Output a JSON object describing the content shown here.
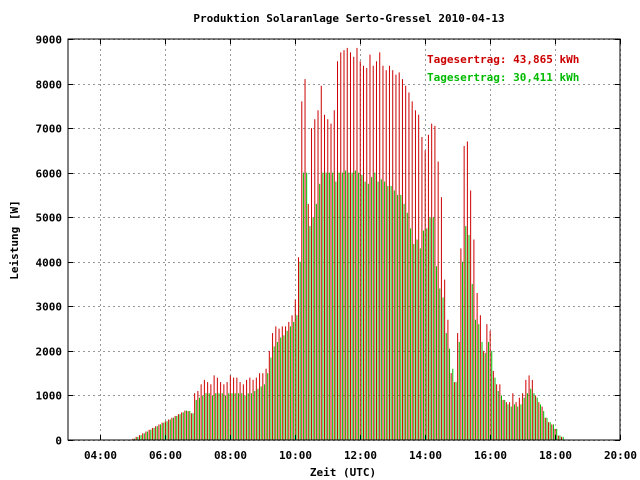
{
  "chart_data": {
    "type": "bar",
    "title": "Produktion Solaranlage Serto-Gressel 2010-04-13",
    "xlabel": "Zeit (UTC)",
    "ylabel": "Leistung [W]",
    "xlim": [
      3.0,
      20.0
    ],
    "ylim": [
      0,
      9000
    ],
    "grid": true,
    "x_ticks": [
      "04:00",
      "06:00",
      "08:00",
      "10:00",
      "12:00",
      "14:00",
      "16:00",
      "18:00",
      "20:00"
    ],
    "x_tick_values": [
      4,
      6,
      8,
      10,
      12,
      14,
      16,
      18,
      20
    ],
    "y_ticks": [
      "0",
      "1000",
      "2000",
      "3000",
      "4000",
      "5000",
      "6000",
      "7000",
      "8000",
      "9000"
    ],
    "y_tick_values": [
      0,
      1000,
      2000,
      3000,
      4000,
      5000,
      6000,
      7000,
      8000,
      9000
    ],
    "annotations": [
      {
        "text": "Tagesertrag: 43,865 kWh",
        "color": "#cc0000"
      },
      {
        "text": "Tagesertrag: 30,411 kWh",
        "color": "#00bb00"
      }
    ],
    "series": [
      {
        "color": "#cc0000",
        "x_start": 5.0,
        "x_step": 0.1,
        "values": [
          30,
          70,
          110,
          150,
          190,
          230,
          270,
          310,
          350,
          390,
          420,
          460,
          500,
          540,
          580,
          620,
          660,
          650,
          600,
          1050,
          1100,
          1250,
          1350,
          1300,
          1250,
          1450,
          1400,
          1300,
          1250,
          1300,
          1450,
          1400,
          1400,
          1300,
          1250,
          1350,
          1400,
          1350,
          1400,
          1500,
          1500,
          1600,
          2000,
          2400,
          2550,
          2500,
          2550,
          2550,
          2650,
          2800,
          3150,
          4100,
          7600,
          8100,
          5300,
          7000,
          7200,
          7400,
          7950,
          7300,
          7200,
          7100,
          7400,
          8500,
          8700,
          8750,
          8800,
          8700,
          8600,
          8800,
          8500,
          8400,
          8350,
          8650,
          8400,
          8500,
          8700,
          8400,
          8300,
          8400,
          8300,
          8200,
          8250,
          8100,
          7950,
          7800,
          7600,
          7400,
          7300,
          6800,
          6500,
          6850,
          7100,
          7050,
          6250,
          5450,
          3600,
          2700,
          1500,
          1300,
          2400,
          4300,
          6600,
          6700,
          5600,
          4500,
          3300,
          2800,
          2000,
          2600,
          2450,
          1550,
          1250,
          1250,
          900,
          850,
          850,
          1050,
          850,
          950,
          1050,
          1350,
          1450,
          1350,
          1000,
          850,
          750,
          500,
          400,
          350,
          250,
          100,
          70
        ]
      },
      {
        "color": "#00bb00",
        "x_start": 5.05,
        "x_step": 0.1,
        "values": [
          30,
          70,
          110,
          150,
          190,
          230,
          270,
          310,
          350,
          390,
          420,
          460,
          500,
          540,
          580,
          620,
          660,
          650,
          600,
          900,
          950,
          1000,
          1050,
          1050,
          1000,
          1050,
          1050,
          1050,
          1000,
          1050,
          1050,
          1050,
          1050,
          1050,
          1000,
          1050,
          1050,
          1100,
          1150,
          1200,
          1250,
          1500,
          1850,
          2100,
          2200,
          2300,
          2350,
          2450,
          2550,
          2650,
          2800,
          4000,
          6000,
          6000,
          4800,
          5000,
          5300,
          5750,
          6000,
          6000,
          6000,
          6000,
          5800,
          6000,
          6000,
          6050,
          6000,
          6000,
          6050,
          6000,
          5950,
          5800,
          5750,
          5900,
          6000,
          5800,
          5850,
          5800,
          5700,
          5700,
          5600,
          5500,
          5500,
          5300,
          5100,
          4750,
          4400,
          4500,
          4300,
          4700,
          4750,
          5000,
          5000,
          3900,
          3400,
          3200,
          2400,
          2050,
          1600,
          1300,
          2200,
          4000,
          4800,
          4600,
          3500,
          2700,
          2600,
          2200,
          1950,
          2200,
          2000,
          1400,
          1100,
          1000,
          900,
          800,
          750,
          800,
          750,
          800,
          950,
          1050,
          1150,
          1050,
          950,
          800,
          650,
          500,
          400,
          350,
          250,
          100,
          70
        ]
      }
    ]
  }
}
